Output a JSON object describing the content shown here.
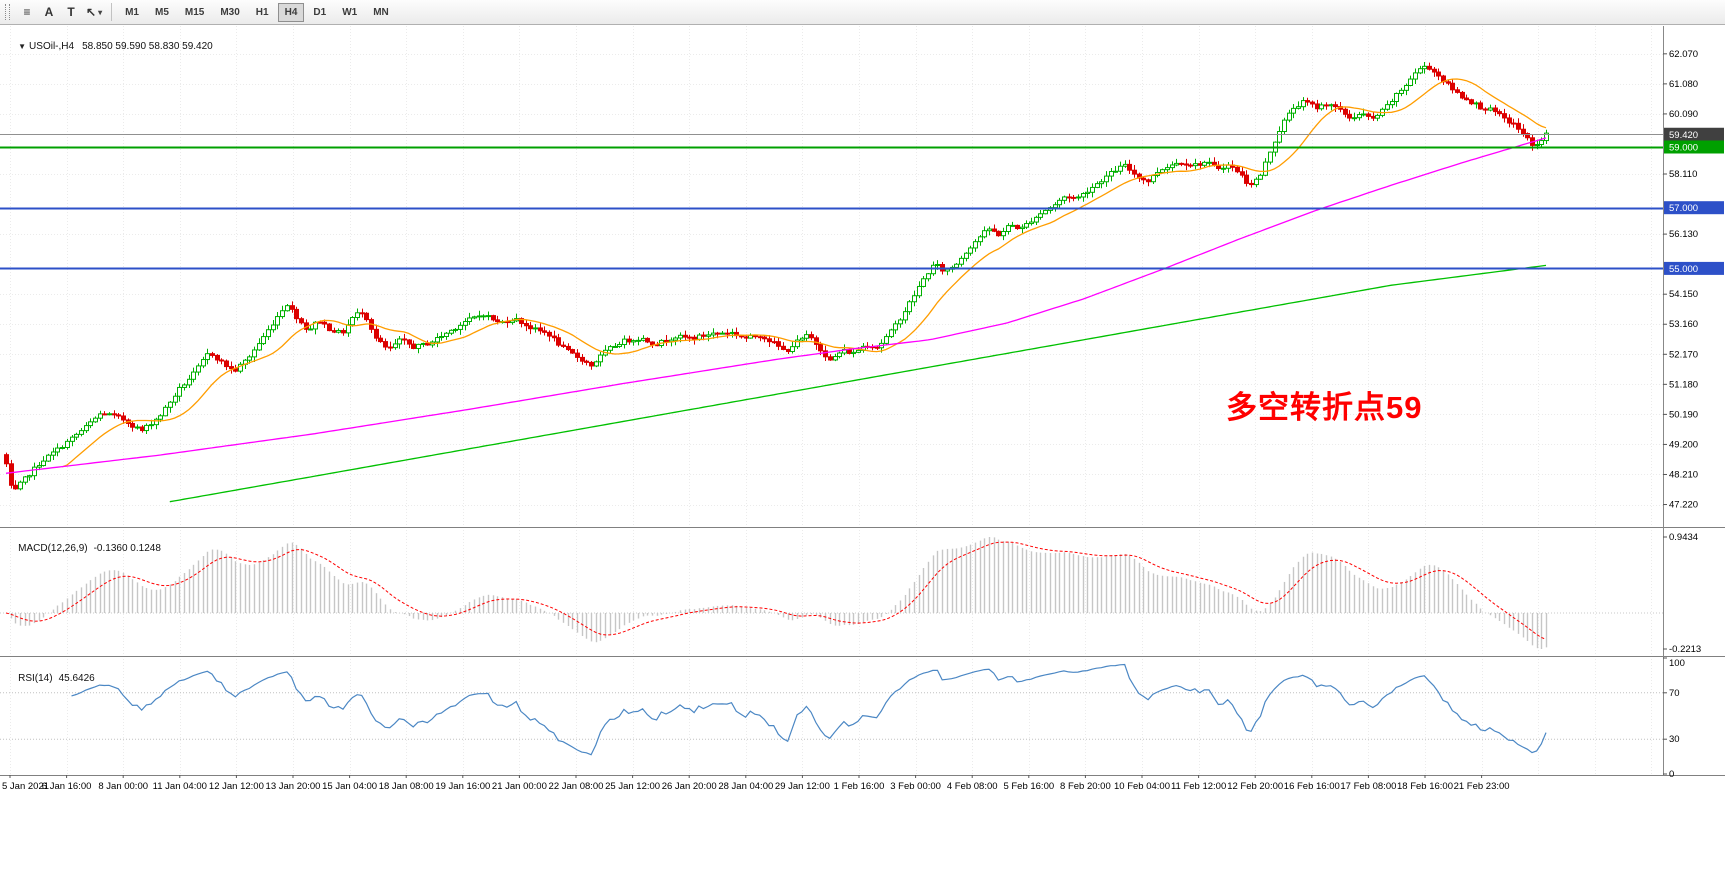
{
  "toolbar": {
    "icons": {
      "list": "≡",
      "letter_a": "A",
      "letter_t": "T",
      "cursor": "↖",
      "caret": "▾"
    },
    "timeframes": [
      "M1",
      "M5",
      "M15",
      "M30",
      "H1",
      "H4",
      "D1",
      "W1",
      "MN"
    ],
    "active_timeframe": "H4"
  },
  "chart_data": {
    "type": "candlestick",
    "symbol": "USOil-",
    "period": "H4",
    "header": {
      "marker": "▼",
      "title": "USOil-,H4",
      "ohlc": "58.850 59.590 58.830 59.420"
    },
    "annotation": {
      "text": "多空转折点59",
      "color": "#ff0000"
    },
    "candle_count": 330,
    "y_axis": {
      "ticks": [
        {
          "p": 62.07,
          "label": "62.070"
        },
        {
          "p": 61.08,
          "label": "61.080"
        },
        {
          "p": 60.09,
          "label": "60.090"
        },
        {
          "p": 58.11,
          "label": "58.110"
        },
        {
          "p": 56.13,
          "label": "56.130"
        },
        {
          "p": 54.15,
          "label": "54.150"
        },
        {
          "p": 53.16,
          "label": "53.160"
        },
        {
          "p": 52.17,
          "label": "52.170"
        },
        {
          "p": 51.18,
          "label": "51.180"
        },
        {
          "p": 50.19,
          "label": "50.190"
        },
        {
          "p": 49.2,
          "label": "49.200"
        },
        {
          "p": 48.21,
          "label": "48.210"
        },
        {
          "p": 47.22,
          "label": "47.220"
        }
      ],
      "badges": [
        {
          "p": 59.42,
          "label": "59.420",
          "color": "#404040"
        },
        {
          "p": 59.0,
          "label": "59.000",
          "color": "#00a000"
        },
        {
          "p": 57.0,
          "label": "57.000",
          "color": "#2d50c8"
        },
        {
          "p": 55.0,
          "label": "55.000",
          "color": "#2d50c8"
        }
      ]
    },
    "hlines": [
      {
        "price": 59.42,
        "color": "#909090",
        "width": 1,
        "name": "current-price-line",
        "object": false
      },
      {
        "price": 59.0,
        "color": "#00a000",
        "width": 2,
        "name": "hline-59000",
        "object": true
      },
      {
        "price": 57.0,
        "color": "#2d50c8",
        "width": 2,
        "name": "hline-57000",
        "object": true
      },
      {
        "price": 55.0,
        "color": "#2d50c8",
        "width": 2,
        "name": "hline-55000",
        "object": true
      }
    ],
    "indicators": {
      "macd": {
        "label": "MACD(12,26,9)",
        "values": "-0.1360 0.1248",
        "axis": [
          "0.9434",
          "-0.2213"
        ]
      },
      "rsi": {
        "label": "RSI(14)",
        "value": "45.6426",
        "axis": [
          "100",
          "70",
          "30",
          "0"
        ],
        "levels": [
          70,
          30
        ]
      }
    },
    "time_labels": [
      "5 Jan 2021",
      "6 Jan 16:00",
      "8 Jan 00:00",
      "11 Jan 04:00",
      "12 Jan 12:00",
      "13 Jan 20:00",
      "15 Jan 04:00",
      "18 Jan 08:00",
      "19 Jan 16:00",
      "21 Jan 00:00",
      "22 Jan 08:00",
      "25 Jan 12:00",
      "26 Jan 20:00",
      "28 Jan 04:00",
      "29 Jan 12:00",
      "1 Feb 16:00",
      "3 Feb 00:00",
      "4 Feb 08:00",
      "5 Feb 16:00",
      "8 Feb 20:00",
      "10 Feb 04:00",
      "11 Feb 12:00",
      "12 Feb 20:00",
      "16 Feb 16:00",
      "17 Feb 08:00",
      "18 Feb 16:00",
      "21 Feb 23:00"
    ],
    "price_path": [
      [
        0,
        48.55
      ],
      [
        0.004,
        47.55
      ],
      [
        0.01,
        47.95
      ],
      [
        0.022,
        48.6
      ],
      [
        0.035,
        49.1
      ],
      [
        0.05,
        49.7
      ],
      [
        0.062,
        50.25
      ],
      [
        0.075,
        50.05
      ],
      [
        0.088,
        49.65
      ],
      [
        0.1,
        50.15
      ],
      [
        0.112,
        51
      ],
      [
        0.122,
        51.55
      ],
      [
        0.132,
        52.25
      ],
      [
        0.14,
        51.9
      ],
      [
        0.148,
        51.6
      ],
      [
        0.158,
        52.1
      ],
      [
        0.168,
        52.8
      ],
      [
        0.176,
        53.4
      ],
      [
        0.182,
        53.85
      ],
      [
        0.19,
        53.3
      ],
      [
        0.196,
        52.95
      ],
      [
        0.203,
        53.3
      ],
      [
        0.21,
        53
      ],
      [
        0.218,
        52.85
      ],
      [
        0.226,
        53.45
      ],
      [
        0.232,
        53.6
      ],
      [
        0.24,
        52.7
      ],
      [
        0.248,
        52.3
      ],
      [
        0.256,
        52.65
      ],
      [
        0.265,
        52.4
      ],
      [
        0.275,
        52.55
      ],
      [
        0.287,
        52.9
      ],
      [
        0.298,
        53.25
      ],
      [
        0.31,
        53.5
      ],
      [
        0.32,
        53.2
      ],
      [
        0.33,
        53.35
      ],
      [
        0.342,
        53
      ],
      [
        0.352,
        52.85
      ],
      [
        0.362,
        52.35
      ],
      [
        0.372,
        52.05
      ],
      [
        0.38,
        51.8
      ],
      [
        0.39,
        52.3
      ],
      [
        0.4,
        52.6
      ],
      [
        0.412,
        52.7
      ],
      [
        0.422,
        52.5
      ],
      [
        0.434,
        52.75
      ],
      [
        0.446,
        52.7
      ],
      [
        0.458,
        52.85
      ],
      [
        0.47,
        52.9
      ],
      [
        0.48,
        52.7
      ],
      [
        0.49,
        52.8
      ],
      [
        0.498,
        52.55
      ],
      [
        0.506,
        52.25
      ],
      [
        0.514,
        52.6
      ],
      [
        0.521,
        52.8
      ],
      [
        0.528,
        52.4
      ],
      [
        0.535,
        51.95
      ],
      [
        0.543,
        52.3
      ],
      [
        0.55,
        52.2
      ],
      [
        0.558,
        52.5
      ],
      [
        0.566,
        52.4
      ],
      [
        0.575,
        52.95
      ],
      [
        0.583,
        53.55
      ],
      [
        0.59,
        54.15
      ],
      [
        0.597,
        54.75
      ],
      [
        0.603,
        55.15
      ],
      [
        0.609,
        54.9
      ],
      [
        0.616,
        55.1
      ],
      [
        0.624,
        55.6
      ],
      [
        0.631,
        56
      ],
      [
        0.638,
        56.3
      ],
      [
        0.645,
        56.1
      ],
      [
        0.652,
        56.45
      ],
      [
        0.659,
        56.3
      ],
      [
        0.666,
        56.6
      ],
      [
        0.674,
        56.9
      ],
      [
        0.681,
        57.1
      ],
      [
        0.688,
        57.4
      ],
      [
        0.695,
        57.3
      ],
      [
        0.703,
        57.6
      ],
      [
        0.711,
        57.9
      ],
      [
        0.719,
        58.2
      ],
      [
        0.726,
        58.4
      ],
      [
        0.733,
        58.1
      ],
      [
        0.741,
        57.85
      ],
      [
        0.748,
        58.2
      ],
      [
        0.755,
        58.4
      ],
      [
        0.763,
        58.5
      ],
      [
        0.771,
        58.4
      ],
      [
        0.779,
        58.5
      ],
      [
        0.786,
        58.3
      ],
      [
        0.793,
        58.4
      ],
      [
        0.8,
        58.2
      ],
      [
        0.807,
        57.75
      ],
      [
        0.814,
        58
      ],
      [
        0.821,
        58.9
      ],
      [
        0.829,
        59.8
      ],
      [
        0.836,
        60.3
      ],
      [
        0.843,
        60.5
      ],
      [
        0.851,
        60.3
      ],
      [
        0.859,
        60.45
      ],
      [
        0.866,
        60.2
      ],
      [
        0.873,
        59.95
      ],
      [
        0.88,
        60.1
      ],
      [
        0.887,
        59.9
      ],
      [
        0.894,
        60.2
      ],
      [
        0.901,
        60.6
      ],
      [
        0.908,
        61
      ],
      [
        0.915,
        61.45
      ],
      [
        0.922,
        61.7
      ],
      [
        0.929,
        61.4
      ],
      [
        0.937,
        61
      ],
      [
        0.944,
        60.7
      ],
      [
        0.951,
        60.5
      ],
      [
        0.958,
        60.3
      ],
      [
        0.965,
        60.2
      ],
      [
        0.972,
        59.95
      ],
      [
        0.98,
        59.7
      ],
      [
        0.987,
        59.3
      ],
      [
        0.993,
        59
      ],
      [
        1,
        59.42
      ]
    ],
    "ma_mid_path": [
      [
        0,
        48.25
      ],
      [
        0.1,
        48.85
      ],
      [
        0.2,
        49.55
      ],
      [
        0.3,
        50.35
      ],
      [
        0.4,
        51.2
      ],
      [
        0.5,
        52
      ],
      [
        0.55,
        52.35
      ],
      [
        0.6,
        52.65
      ],
      [
        0.65,
        53.2
      ],
      [
        0.7,
        54
      ],
      [
        0.75,
        54.95
      ],
      [
        0.8,
        55.95
      ],
      [
        0.85,
        56.9
      ],
      [
        0.9,
        57.75
      ],
      [
        0.95,
        58.55
      ],
      [
        1,
        59.3
      ]
    ],
    "ma_slow_path": [
      [
        0.105,
        47.3
      ],
      [
        0.2,
        48.15
      ],
      [
        0.3,
        49.05
      ],
      [
        0.4,
        49.95
      ],
      [
        0.5,
        50.85
      ],
      [
        0.6,
        51.75
      ],
      [
        0.7,
        52.65
      ],
      [
        0.8,
        53.55
      ],
      [
        0.9,
        54.45
      ],
      [
        1,
        55.1
      ]
    ],
    "colors": {
      "up": "#00b000",
      "down": "#dc0000",
      "ma_fast": "#ff9d00",
      "ma_mid": "#ff00ff",
      "ma_slow": "#00c000",
      "macd_bar": "#c6c6c6",
      "macd_signal": "#ff0000",
      "rsi": "#4b87c4",
      "grid": "#ebebeb"
    }
  }
}
